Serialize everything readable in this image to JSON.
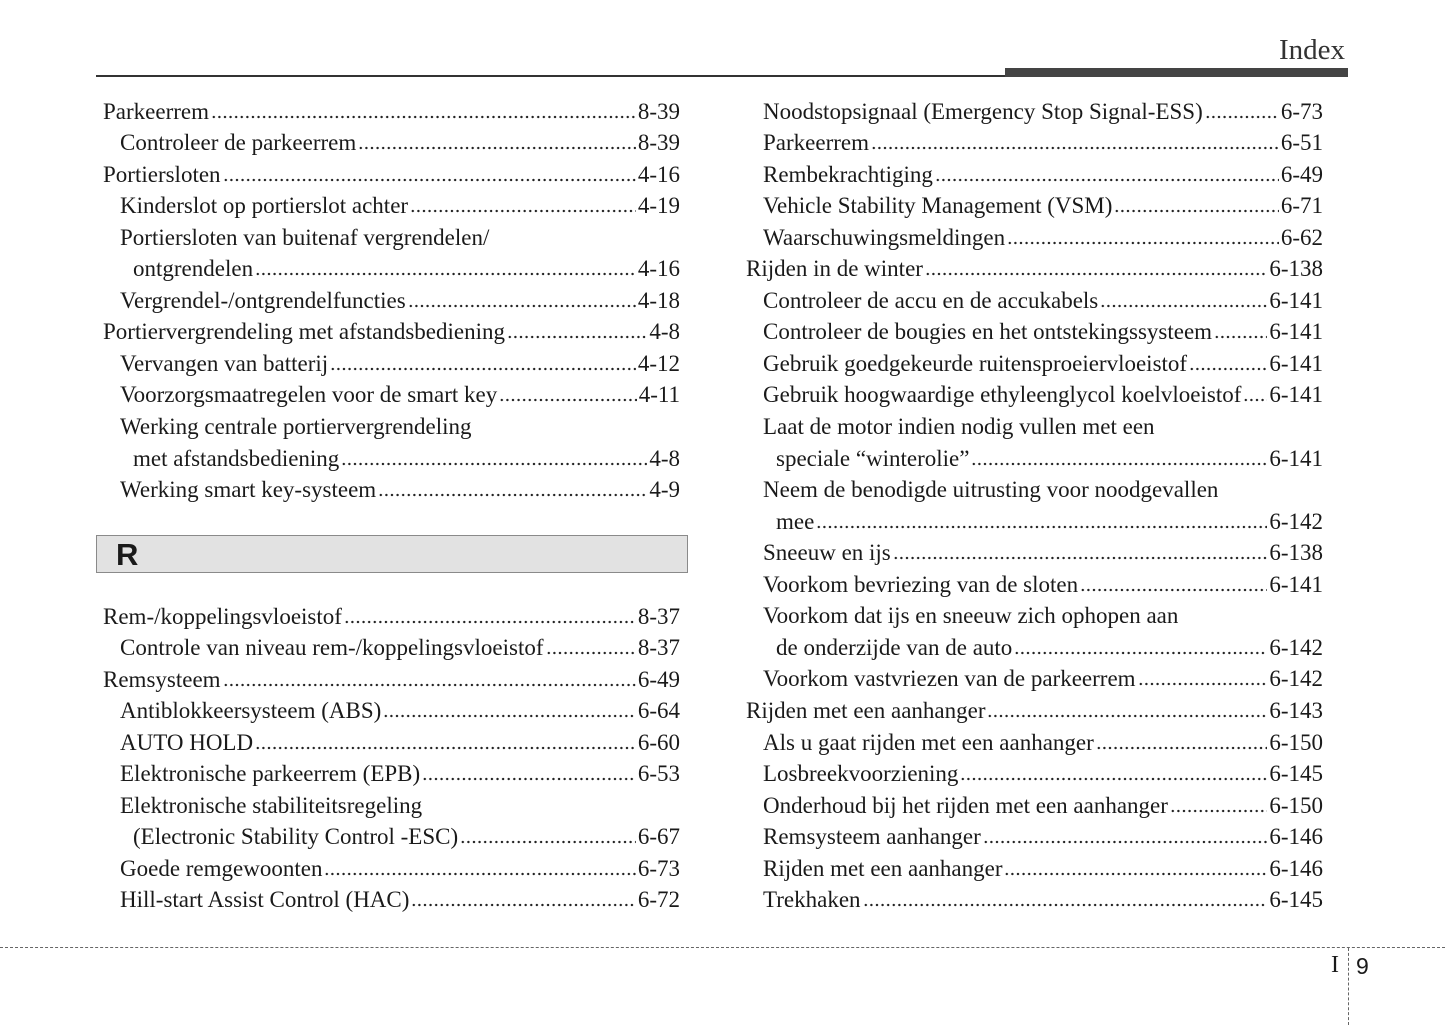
{
  "header": {
    "title": "Index"
  },
  "left": {
    "entries": [
      {
        "lines": [
          "Parkeerrem"
        ],
        "page": "8-39",
        "subentries": [
          {
            "lines": [
              "Controleer de parkeerrem"
            ],
            "page": "8-39"
          }
        ]
      },
      {
        "lines": [
          "Portiersloten"
        ],
        "page": "4-16",
        "subentries": [
          {
            "lines": [
              "Kinderslot op portierslot achter"
            ],
            "page": "4-19"
          },
          {
            "lines": [
              "Portiersloten van buitenaf vergrendelen/",
              "ontgrendelen"
            ],
            "page": "4-16"
          },
          {
            "lines": [
              "Vergrendel-/ontgrendelfuncties"
            ],
            "page": "4-18"
          }
        ]
      },
      {
        "lines": [
          "Portiervergrendeling met afstandsbediening"
        ],
        "page": "4-8",
        "subentries": [
          {
            "lines": [
              "Vervangen van batterij"
            ],
            "page": "4-12"
          },
          {
            "lines": [
              "Voorzorgsmaatregelen voor de smart key"
            ],
            "page": "4-11"
          },
          {
            "lines": [
              "Werking centrale portiervergrendeling",
              "met afstandsbediening"
            ],
            "page": "4-8"
          },
          {
            "lines": [
              "Werking smart key-systeem"
            ],
            "page": "4-9"
          }
        ]
      }
    ],
    "section": "R",
    "section_entries": [
      {
        "lines": [
          "Rem-/koppelingsvloeistof"
        ],
        "page": "8-37",
        "subentries": [
          {
            "lines": [
              "Controle van niveau rem-/koppelingsvloeistof"
            ],
            "page": "8-37"
          }
        ]
      },
      {
        "lines": [
          "Remsysteem"
        ],
        "page": "6-49",
        "subentries": [
          {
            "lines": [
              "Antiblokkeersysteem (ABS)"
            ],
            "page": "6-64"
          },
          {
            "lines": [
              "AUTO HOLD"
            ],
            "page": "6-60"
          },
          {
            "lines": [
              "Elektronische parkeerrem (EPB)"
            ],
            "page": "6-53"
          },
          {
            "lines": [
              "Elektronische stabiliteitsregeling",
              "(Electronic Stability Control -ESC)"
            ],
            "page": "6-67"
          },
          {
            "lines": [
              "Goede remgewoonten"
            ],
            "page": "6-73"
          },
          {
            "lines": [
              "Hill-start Assist Control (HAC)"
            ],
            "page": "6-72"
          }
        ]
      }
    ]
  },
  "right": {
    "continued": [
      {
        "lines": [
          "Noodstopsignaal (Emergency Stop Signal-ESS)"
        ],
        "page": "6-73"
      },
      {
        "lines": [
          "Parkeerrem"
        ],
        "page": "6-51"
      },
      {
        "lines": [
          "Rembekrachtiging"
        ],
        "page": "6-49"
      },
      {
        "lines": [
          "Vehicle Stability Management (VSM)"
        ],
        "page": "6-71"
      },
      {
        "lines": [
          "Waarschuwingsmeldingen"
        ],
        "page": "6-62"
      }
    ],
    "entries": [
      {
        "lines": [
          "Rijden in de winter"
        ],
        "page": "6-138",
        "subentries": [
          {
            "lines": [
              "Controleer de accu en de accukabels"
            ],
            "page": "6-141"
          },
          {
            "lines": [
              "Controleer de bougies en het ontstekingssysteem"
            ],
            "page": "6-141"
          },
          {
            "lines": [
              "Gebruik goedgekeurde ruitensproeiervloeistof"
            ],
            "page": "6-141"
          },
          {
            "lines": [
              "Gebruik hoogwaardige ethyleenglycol koelvloeistof"
            ],
            "page": "6-141"
          },
          {
            "lines": [
              "Laat de motor indien nodig vullen met een",
              "speciale “winterolie”"
            ],
            "page": "6-141"
          },
          {
            "lines": [
              "Neem de benodigde uitrusting voor noodgevallen",
              "mee"
            ],
            "page": "6-142"
          },
          {
            "lines": [
              "Sneeuw en ijs"
            ],
            "page": "6-138"
          },
          {
            "lines": [
              "Voorkom bevriezing van de sloten"
            ],
            "page": "6-141"
          },
          {
            "lines": [
              "Voorkom dat ijs en sneeuw zich ophopen aan",
              "de onderzijde van de auto"
            ],
            "page": "6-142"
          },
          {
            "lines": [
              "Voorkom vastvriezen van de parkeerrem"
            ],
            "page": "6-142"
          }
        ]
      },
      {
        "lines": [
          "Rijden met een aanhanger"
        ],
        "page": "6-143",
        "subentries": [
          {
            "lines": [
              "Als u gaat rijden met een aanhanger"
            ],
            "page": "6-150"
          },
          {
            "lines": [
              "Losbreekvoorziening"
            ],
            "page": "6-145"
          },
          {
            "lines": [
              "Onderhoud bij het rijden met een aanhanger"
            ],
            "page": "6-150"
          },
          {
            "lines": [
              "Remsysteem aanhanger"
            ],
            "page": "6-146"
          },
          {
            "lines": [
              "Rijden met een aanhanger"
            ],
            "page": "6-146"
          },
          {
            "lines": [
              "Trekhaken"
            ],
            "page": "6-145"
          }
        ]
      }
    ]
  },
  "footer": {
    "chapter": "I",
    "page": "9"
  }
}
